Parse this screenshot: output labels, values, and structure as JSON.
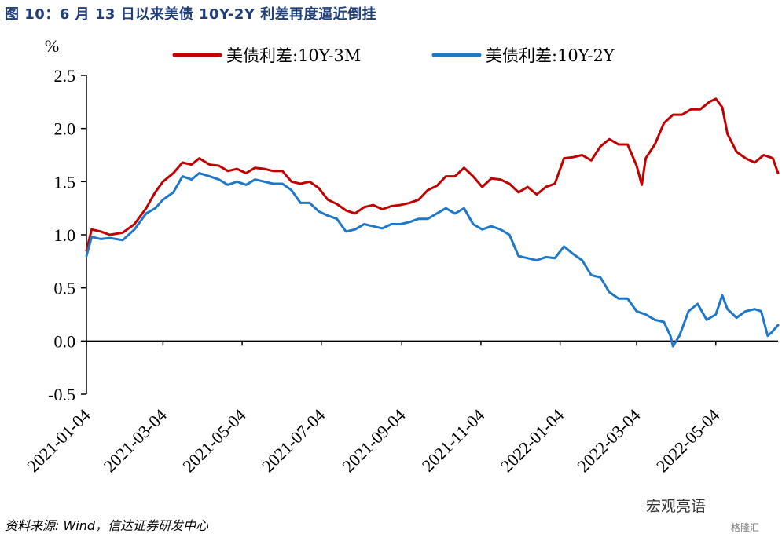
{
  "figure_title": "图 10：6 月 13 日以来美债 10Y-2Y 利差再度逼近倒挂",
  "source_note": "资料来源: Wind，信达证券研发中心",
  "watermark": "宏观亮语",
  "watermark_logo": "格隆汇",
  "chart_data": {
    "type": "line",
    "unit_label": "%",
    "ylim": [
      -0.5,
      2.5
    ],
    "y_ticks": [
      "2.5",
      "2.0",
      "1.5",
      "1.0",
      "0.5",
      "0.0",
      "-0.5"
    ],
    "x_range": [
      "2021-01-04",
      "2022-06-21"
    ],
    "x_ticks": [
      "2021-01-04",
      "2021-03-04",
      "2021-05-04",
      "2021-07-04",
      "2021-09-04",
      "2021-11-04",
      "2022-01-04",
      "2022-03-04",
      "2022-05-04"
    ],
    "grid": false,
    "legend_position": "top",
    "series": [
      {
        "name": "美债利差:10Y-3M",
        "color": "#c00000",
        "points": [
          [
            "2021-01-04",
            0.85
          ],
          [
            "2021-01-08",
            1.05
          ],
          [
            "2021-01-15",
            1.03
          ],
          [
            "2021-01-22",
            1.0
          ],
          [
            "2021-02-01",
            1.02
          ],
          [
            "2021-02-10",
            1.1
          ],
          [
            "2021-02-19",
            1.25
          ],
          [
            "2021-02-26",
            1.4
          ],
          [
            "2021-03-04",
            1.5
          ],
          [
            "2021-03-12",
            1.58
          ],
          [
            "2021-03-19",
            1.68
          ],
          [
            "2021-03-26",
            1.66
          ],
          [
            "2021-04-01",
            1.72
          ],
          [
            "2021-04-09",
            1.66
          ],
          [
            "2021-04-16",
            1.65
          ],
          [
            "2021-04-23",
            1.6
          ],
          [
            "2021-04-30",
            1.62
          ],
          [
            "2021-05-07",
            1.58
          ],
          [
            "2021-05-14",
            1.63
          ],
          [
            "2021-05-21",
            1.62
          ],
          [
            "2021-05-28",
            1.6
          ],
          [
            "2021-06-04",
            1.6
          ],
          [
            "2021-06-11",
            1.5
          ],
          [
            "2021-06-18",
            1.48
          ],
          [
            "2021-06-25",
            1.5
          ],
          [
            "2021-07-02",
            1.44
          ],
          [
            "2021-07-09",
            1.33
          ],
          [
            "2021-07-16",
            1.29
          ],
          [
            "2021-07-23",
            1.23
          ],
          [
            "2021-07-30",
            1.2
          ],
          [
            "2021-08-06",
            1.26
          ],
          [
            "2021-08-13",
            1.28
          ],
          [
            "2021-08-20",
            1.24
          ],
          [
            "2021-08-27",
            1.27
          ],
          [
            "2021-09-03",
            1.28
          ],
          [
            "2021-09-10",
            1.3
          ],
          [
            "2021-09-17",
            1.33
          ],
          [
            "2021-09-24",
            1.42
          ],
          [
            "2021-10-01",
            1.46
          ],
          [
            "2021-10-08",
            1.55
          ],
          [
            "2021-10-15",
            1.55
          ],
          [
            "2021-10-22",
            1.63
          ],
          [
            "2021-10-29",
            1.55
          ],
          [
            "2021-11-05",
            1.45
          ],
          [
            "2021-11-12",
            1.53
          ],
          [
            "2021-11-19",
            1.52
          ],
          [
            "2021-11-26",
            1.48
          ],
          [
            "2021-12-03",
            1.4
          ],
          [
            "2021-12-10",
            1.45
          ],
          [
            "2021-12-17",
            1.38
          ],
          [
            "2021-12-24",
            1.45
          ],
          [
            "2021-12-31",
            1.48
          ],
          [
            "2022-01-07",
            1.72
          ],
          [
            "2022-01-14",
            1.73
          ],
          [
            "2022-01-21",
            1.75
          ],
          [
            "2022-01-28",
            1.7
          ],
          [
            "2022-02-04",
            1.83
          ],
          [
            "2022-02-11",
            1.9
          ],
          [
            "2022-02-18",
            1.85
          ],
          [
            "2022-02-25",
            1.85
          ],
          [
            "2022-03-04",
            1.65
          ],
          [
            "2022-03-08",
            1.47
          ],
          [
            "2022-03-11",
            1.72
          ],
          [
            "2022-03-18",
            1.85
          ],
          [
            "2022-03-25",
            2.05
          ],
          [
            "2022-04-01",
            2.13
          ],
          [
            "2022-04-08",
            2.13
          ],
          [
            "2022-04-15",
            2.18
          ],
          [
            "2022-04-22",
            2.18
          ],
          [
            "2022-04-29",
            2.25
          ],
          [
            "2022-05-04",
            2.28
          ],
          [
            "2022-05-09",
            2.2
          ],
          [
            "2022-05-13",
            1.95
          ],
          [
            "2022-05-20",
            1.78
          ],
          [
            "2022-05-27",
            1.72
          ],
          [
            "2022-06-03",
            1.68
          ],
          [
            "2022-06-10",
            1.75
          ],
          [
            "2022-06-17",
            1.72
          ],
          [
            "2022-06-21",
            1.58
          ]
        ]
      },
      {
        "name": "美债利差:10Y-2Y",
        "color": "#1f77c8",
        "points": [
          [
            "2021-01-04",
            0.8
          ],
          [
            "2021-01-08",
            0.98
          ],
          [
            "2021-01-15",
            0.96
          ],
          [
            "2021-01-22",
            0.97
          ],
          [
            "2021-02-01",
            0.95
          ],
          [
            "2021-02-10",
            1.05
          ],
          [
            "2021-02-19",
            1.2
          ],
          [
            "2021-02-26",
            1.25
          ],
          [
            "2021-03-04",
            1.33
          ],
          [
            "2021-03-12",
            1.4
          ],
          [
            "2021-03-19",
            1.55
          ],
          [
            "2021-03-26",
            1.52
          ],
          [
            "2021-04-01",
            1.58
          ],
          [
            "2021-04-09",
            1.55
          ],
          [
            "2021-04-16",
            1.52
          ],
          [
            "2021-04-23",
            1.47
          ],
          [
            "2021-04-30",
            1.5
          ],
          [
            "2021-05-07",
            1.47
          ],
          [
            "2021-05-14",
            1.52
          ],
          [
            "2021-05-21",
            1.5
          ],
          [
            "2021-05-28",
            1.48
          ],
          [
            "2021-06-04",
            1.48
          ],
          [
            "2021-06-11",
            1.42
          ],
          [
            "2021-06-18",
            1.3
          ],
          [
            "2021-06-25",
            1.3
          ],
          [
            "2021-07-02",
            1.22
          ],
          [
            "2021-07-09",
            1.18
          ],
          [
            "2021-07-16",
            1.15
          ],
          [
            "2021-07-23",
            1.03
          ],
          [
            "2021-07-30",
            1.05
          ],
          [
            "2021-08-06",
            1.1
          ],
          [
            "2021-08-13",
            1.08
          ],
          [
            "2021-08-20",
            1.06
          ],
          [
            "2021-08-27",
            1.1
          ],
          [
            "2021-09-03",
            1.1
          ],
          [
            "2021-09-10",
            1.12
          ],
          [
            "2021-09-17",
            1.15
          ],
          [
            "2021-09-24",
            1.15
          ],
          [
            "2021-10-01",
            1.2
          ],
          [
            "2021-10-08",
            1.25
          ],
          [
            "2021-10-15",
            1.2
          ],
          [
            "2021-10-22",
            1.25
          ],
          [
            "2021-10-29",
            1.1
          ],
          [
            "2021-11-05",
            1.05
          ],
          [
            "2021-11-12",
            1.08
          ],
          [
            "2021-11-19",
            1.05
          ],
          [
            "2021-11-26",
            1.0
          ],
          [
            "2021-12-03",
            0.8
          ],
          [
            "2021-12-10",
            0.78
          ],
          [
            "2021-12-17",
            0.76
          ],
          [
            "2021-12-24",
            0.79
          ],
          [
            "2021-12-31",
            0.78
          ],
          [
            "2022-01-07",
            0.89
          ],
          [
            "2022-01-14",
            0.82
          ],
          [
            "2022-01-21",
            0.76
          ],
          [
            "2022-01-28",
            0.62
          ],
          [
            "2022-02-04",
            0.6
          ],
          [
            "2022-02-11",
            0.46
          ],
          [
            "2022-02-18",
            0.4
          ],
          [
            "2022-02-25",
            0.4
          ],
          [
            "2022-03-04",
            0.28
          ],
          [
            "2022-03-11",
            0.25
          ],
          [
            "2022-03-18",
            0.2
          ],
          [
            "2022-03-25",
            0.18
          ],
          [
            "2022-03-30",
            0.05
          ],
          [
            "2022-04-01",
            -0.05
          ],
          [
            "2022-04-06",
            0.05
          ],
          [
            "2022-04-13",
            0.28
          ],
          [
            "2022-04-20",
            0.35
          ],
          [
            "2022-04-27",
            0.2
          ],
          [
            "2022-05-04",
            0.25
          ],
          [
            "2022-05-09",
            0.43
          ],
          [
            "2022-05-13",
            0.3
          ],
          [
            "2022-05-20",
            0.22
          ],
          [
            "2022-05-27",
            0.28
          ],
          [
            "2022-06-03",
            0.3
          ],
          [
            "2022-06-08",
            0.28
          ],
          [
            "2022-06-13",
            0.05
          ],
          [
            "2022-06-16",
            0.08
          ],
          [
            "2022-06-21",
            0.15
          ]
        ]
      }
    ]
  }
}
